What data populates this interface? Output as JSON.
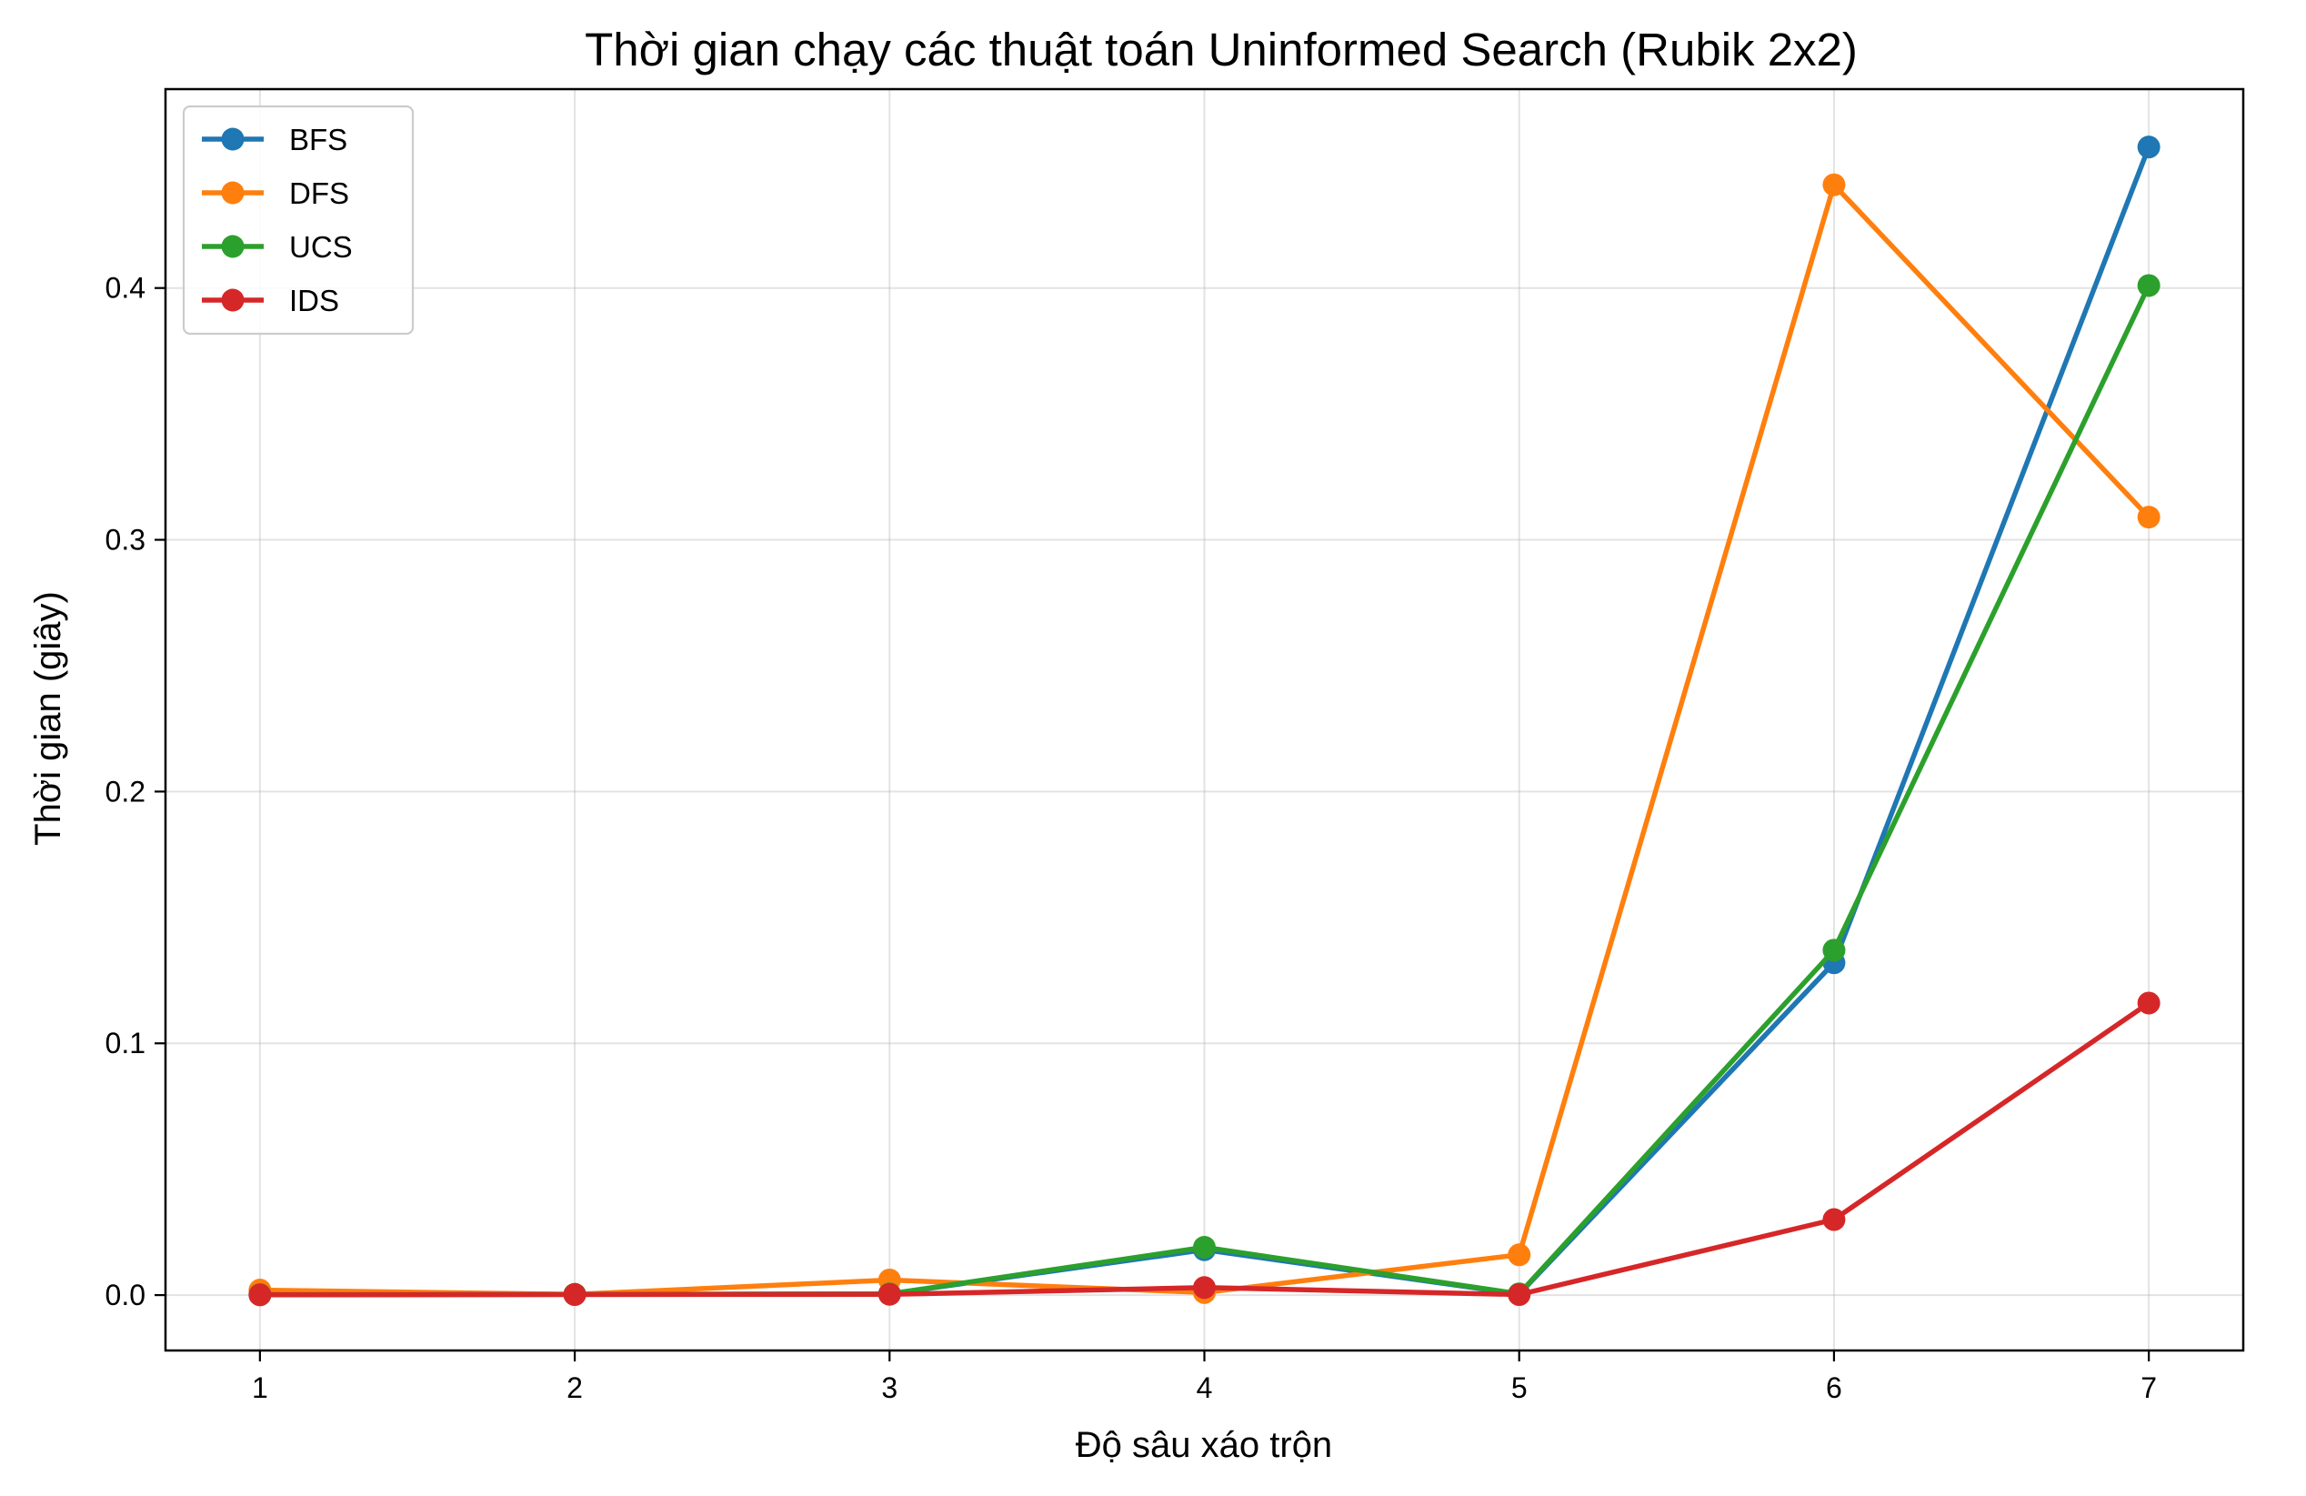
{
  "chart_data": {
    "type": "line",
    "title": "Thời gian chạy các thuật toán Uninformed Search (Rubik 2x2)",
    "xlabel": "Độ sâu xáo trộn",
    "ylabel": "Thời gian (giây)",
    "x": [
      1,
      2,
      3,
      4,
      5,
      6,
      7
    ],
    "xlim": [
      0.7,
      7.3
    ],
    "ylim": [
      -0.022,
      0.479
    ],
    "xticks": [
      "1",
      "2",
      "3",
      "4",
      "5",
      "6",
      "7"
    ],
    "yticks": [
      "0.0",
      "0.1",
      "0.2",
      "0.3",
      "0.4"
    ],
    "grid": true,
    "legend_position": "top-left",
    "marker": "circle",
    "series": [
      {
        "name": "BFS",
        "color": "#1f77b4",
        "values": [
          0.0002,
          0.0003,
          0.0005,
          0.018,
          0.0004,
          0.132,
          0.456
        ]
      },
      {
        "name": "DFS",
        "color": "#ff7f0e",
        "values": [
          0.002,
          0.0003,
          0.006,
          0.001,
          0.016,
          0.441,
          0.309
        ]
      },
      {
        "name": "UCS",
        "color": "#2ca02c",
        "values": [
          0.0002,
          0.0003,
          0.0005,
          0.019,
          0.0005,
          0.137,
          0.401
        ]
      },
      {
        "name": "IDS",
        "color": "#d62728",
        "values": [
          0.0001,
          0.0002,
          0.0003,
          0.003,
          0.0002,
          0.03,
          0.116
        ]
      }
    ]
  }
}
